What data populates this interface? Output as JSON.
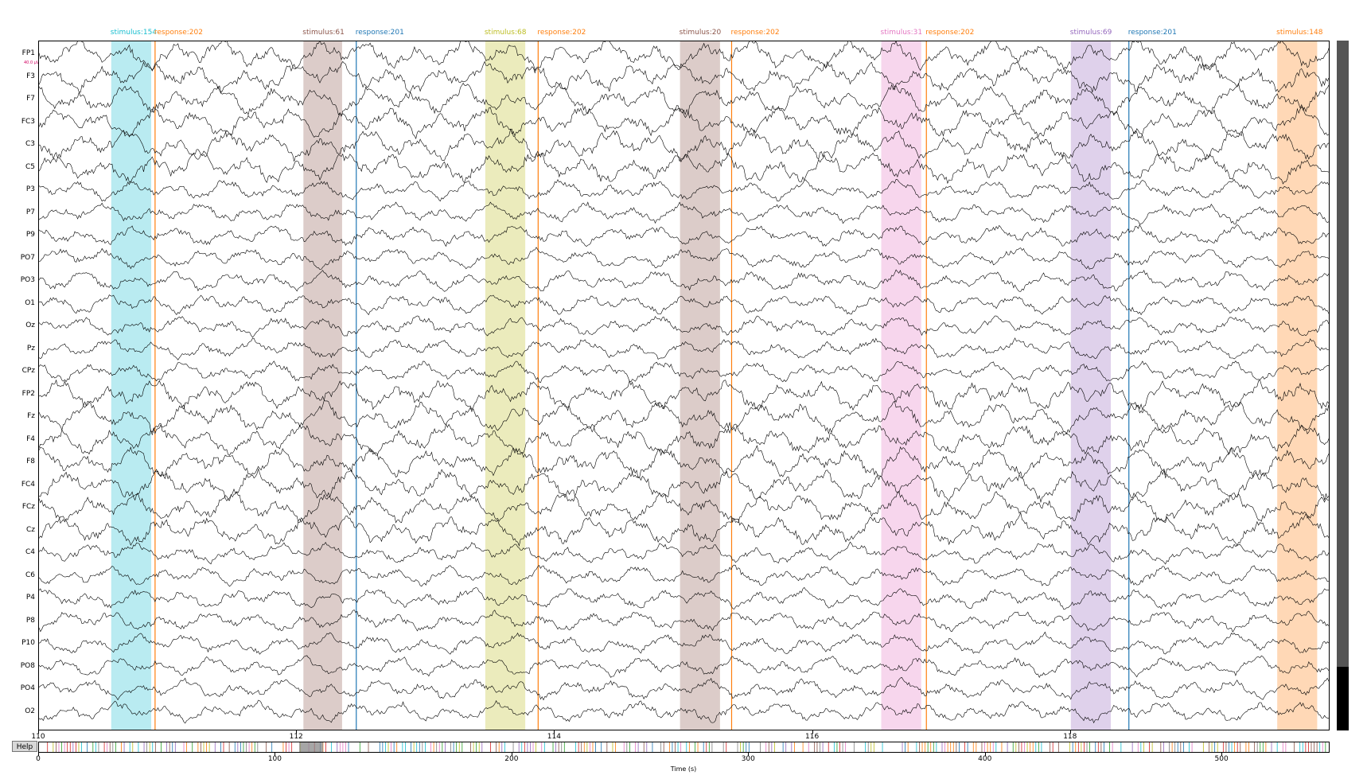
{
  "window": {
    "x_start": 110,
    "x_end": 120,
    "xticks": [
      "110",
      "112",
      "114",
      "116",
      "118"
    ],
    "tick_values": [
      110,
      112,
      114,
      116,
      118
    ],
    "scale_text": "40.0 µV"
  },
  "channels": [
    "FP1",
    "F3",
    "F7",
    "FC3",
    "C3",
    "C5",
    "P3",
    "P7",
    "P9",
    "PO7",
    "PO3",
    "O1",
    "Oz",
    "Pz",
    "CPz",
    "FP2",
    "Fz",
    "F4",
    "F8",
    "FC4",
    "FCz",
    "Cz",
    "C4",
    "C6",
    "P4",
    "P8",
    "P10",
    "PO8",
    "PO4",
    "O2"
  ],
  "annotations": [
    {
      "label": "stimulus:154",
      "start": 110.56,
      "end": 110.87,
      "color": "#17becf"
    },
    {
      "label": "response:202",
      "at": 110.9,
      "color": "#ff7f0e"
    },
    {
      "label": "stimulus:61",
      "start": 112.05,
      "end": 112.35,
      "color": "#8c564b"
    },
    {
      "label": "response:201",
      "at": 112.46,
      "color": "#1f77b4"
    },
    {
      "label": "stimulus:68",
      "start": 113.46,
      "end": 113.77,
      "color": "#bcbd22"
    },
    {
      "label": "response:202",
      "at": 113.87,
      "color": "#ff7f0e"
    },
    {
      "label": "stimulus:20",
      "start": 114.97,
      "end": 115.28,
      "color": "#8c564b"
    },
    {
      "label": "response:202",
      "at": 115.37,
      "color": "#ff7f0e"
    },
    {
      "label": "stimulus:31",
      "start": 116.53,
      "end": 116.84,
      "color": "#e377c2"
    },
    {
      "label": "response:202",
      "at": 116.88,
      "color": "#ff7f0e"
    },
    {
      "label": "stimulus:69",
      "start": 118.0,
      "end": 118.31,
      "color": "#9467bd"
    },
    {
      "label": "response:201",
      "at": 118.45,
      "color": "#1f77b4"
    },
    {
      "label": "stimulus:148",
      "start": 119.6,
      "end": 119.91,
      "color": "#ff7f0e"
    }
  ],
  "overview": {
    "help_label": "Help",
    "range": [
      0,
      545
    ],
    "xticks": [
      "0",
      "100",
      "200",
      "300",
      "400",
      "500"
    ],
    "tick_values": [
      0,
      100,
      200,
      300,
      400,
      500
    ],
    "window_start": 110,
    "window_end": 120,
    "marker_colors": [
      "#17becf",
      "#ff7f0e",
      "#8c564b",
      "#1f77b4",
      "#bcbd22",
      "#e377c2",
      "#9467bd",
      "#7f7f7f",
      "#2ca02c",
      "#d62728"
    ]
  },
  "x_axis_label": "Time (s)",
  "scrollbar": {
    "position_fraction": 0.92
  }
}
